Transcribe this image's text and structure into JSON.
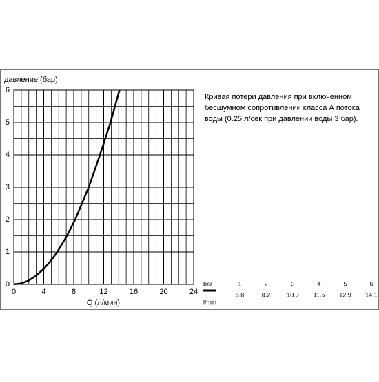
{
  "chart_data": {
    "type": "line",
    "y_label": "давление (бар)",
    "x_label": "Q (л/мин)",
    "x": [
      0,
      1,
      2,
      3,
      4,
      5,
      5.8,
      7,
      8.2,
      10.0,
      11.5,
      12.9,
      14.1
    ],
    "series": [
      {
        "name": "curve",
        "color": "#000000",
        "values": [
          0,
          0.03,
          0.12,
          0.27,
          0.48,
          0.74,
          1,
          1.46,
          2,
          3,
          4,
          5,
          6
        ]
      }
    ],
    "xlim": [
      0,
      24
    ],
    "ylim": [
      0,
      6
    ],
    "xticks": [
      0,
      4,
      8,
      12,
      16,
      20,
      24
    ],
    "yticks": [
      0,
      1,
      2,
      3,
      4,
      5,
      6
    ],
    "grid": true,
    "minor_grid": {
      "x": 1,
      "y": 0.5
    }
  },
  "note": [
    "Кривая потери давления при включенном",
    "бесшумном сопротивлении класса А потока",
    "воды (0.25 л/сек при давлении воды 3 бар)."
  ],
  "table": {
    "pressure_label": "bar",
    "flow_label": "l/min",
    "pressure": [
      1,
      2,
      3,
      4,
      5,
      6
    ],
    "flow": [
      "5.8",
      "8.2",
      "10.0",
      "11.5",
      "12.9",
      "14.1"
    ]
  }
}
